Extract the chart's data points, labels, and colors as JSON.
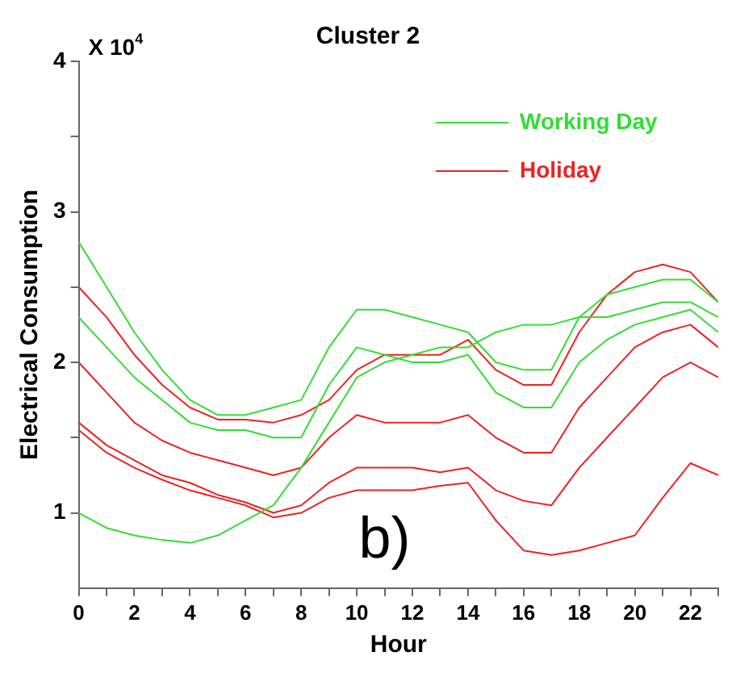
{
  "chart_data": {
    "type": "line",
    "title": "Cluster 2",
    "xlabel": "Hour",
    "ylabel": "Electrical Consumption",
    "annotations": [
      "X 10$^{4}$",
      "b)"
    ],
    "x": [
      0,
      1,
      2,
      3,
      4,
      5,
      6,
      7,
      8,
      9,
      10,
      11,
      12,
      13,
      14,
      15,
      16,
      17,
      18,
      19,
      20,
      21,
      22,
      23
    ],
    "xlim": [
      0,
      23
    ],
    "xticks": [
      0,
      {
        "value": 1,
        "label": null
      },
      2,
      {
        "value": 3,
        "label": null
      },
      4,
      {
        "value": 5,
        "label": null
      },
      6,
      {
        "value": 7,
        "label": null
      },
      8,
      {
        "value": 9,
        "label": null
      },
      10,
      {
        "value": 11,
        "label": null
      },
      12,
      {
        "value": 13,
        "label": null
      },
      14,
      {
        "value": 15,
        "label": null
      },
      16,
      {
        "value": 17,
        "label": null
      },
      18,
      {
        "value": 19,
        "label": null
      },
      20,
      {
        "value": 21,
        "label": null
      },
      22,
      {
        "value": 23,
        "label": null
      }
    ],
    "ylim": [
      0.5,
      4
    ],
    "yticks": [
      1,
      {
        "value": 1.5,
        "label": null
      },
      2,
      {
        "value": 2.5,
        "label": null
      },
      3,
      {
        "value": 3.5,
        "label": null
      },
      4
    ],
    "grid": false,
    "legend": "top right",
    "marker": "none",
    "line_style": "solid",
    "series": [
      {
        "name": "Working Day",
        "color": "#33dd33",
        "values": [
          2.8,
          2.5,
          2.2,
          1.95,
          1.75,
          1.65,
          1.65,
          1.7,
          1.75,
          2.1,
          2.35,
          2.35,
          2.3,
          2.25,
          2.2,
          2.0,
          1.95,
          1.95,
          2.3,
          2.45,
          2.5,
          2.55,
          2.55,
          2.4
        ]
      },
      {
        "color": "#33dd33",
        "values": [
          2.3,
          2.1,
          1.9,
          1.75,
          1.6,
          1.55,
          1.55,
          1.5,
          1.5,
          1.85,
          2.1,
          2.05,
          2.0,
          2.0,
          2.05,
          1.8,
          1.7,
          1.7,
          2.0,
          2.15,
          2.25,
          2.3,
          2.35,
          2.2
        ]
      },
      {
        "color": "#33dd33",
        "values": [
          1.0,
          0.9,
          0.85,
          0.82,
          0.8,
          0.85,
          0.95,
          1.05,
          1.3,
          1.6,
          1.9,
          2.0,
          2.05,
          2.1,
          2.1,
          2.2,
          2.25,
          2.25,
          2.3,
          2.3,
          2.35,
          2.4,
          2.4,
          2.3
        ]
      },
      {
        "name": "Holiday",
        "color": "#ee2222",
        "values": [
          2.5,
          2.3,
          2.05,
          1.85,
          1.7,
          1.62,
          1.62,
          1.6,
          1.65,
          1.75,
          1.95,
          2.05,
          2.05,
          2.05,
          2.15,
          1.95,
          1.85,
          1.85,
          2.2,
          2.45,
          2.6,
          2.65,
          2.6,
          2.4
        ]
      },
      {
        "color": "#ee2222",
        "values": [
          2.0,
          1.8,
          1.6,
          1.48,
          1.4,
          1.35,
          1.3,
          1.25,
          1.3,
          1.5,
          1.65,
          1.6,
          1.6,
          1.6,
          1.65,
          1.5,
          1.4,
          1.4,
          1.7,
          1.9,
          2.1,
          2.2,
          2.25,
          2.1
        ]
      },
      {
        "color": "#ee2222",
        "values": [
          1.6,
          1.45,
          1.35,
          1.25,
          1.2,
          1.12,
          1.07,
          1.0,
          1.05,
          1.2,
          1.3,
          1.3,
          1.3,
          1.27,
          1.3,
          1.15,
          1.08,
          1.05,
          1.3,
          1.5,
          1.7,
          1.9,
          2.0,
          1.9
        ]
      },
      {
        "color": "#ee2222",
        "values": [
          1.55,
          1.4,
          1.3,
          1.22,
          1.15,
          1.1,
          1.05,
          0.97,
          1.0,
          1.1,
          1.15,
          1.15,
          1.15,
          1.18,
          1.2,
          0.95,
          0.75,
          0.72,
          0.75,
          0.8,
          0.85,
          1.1,
          1.33,
          1.25
        ]
      }
    ]
  }
}
